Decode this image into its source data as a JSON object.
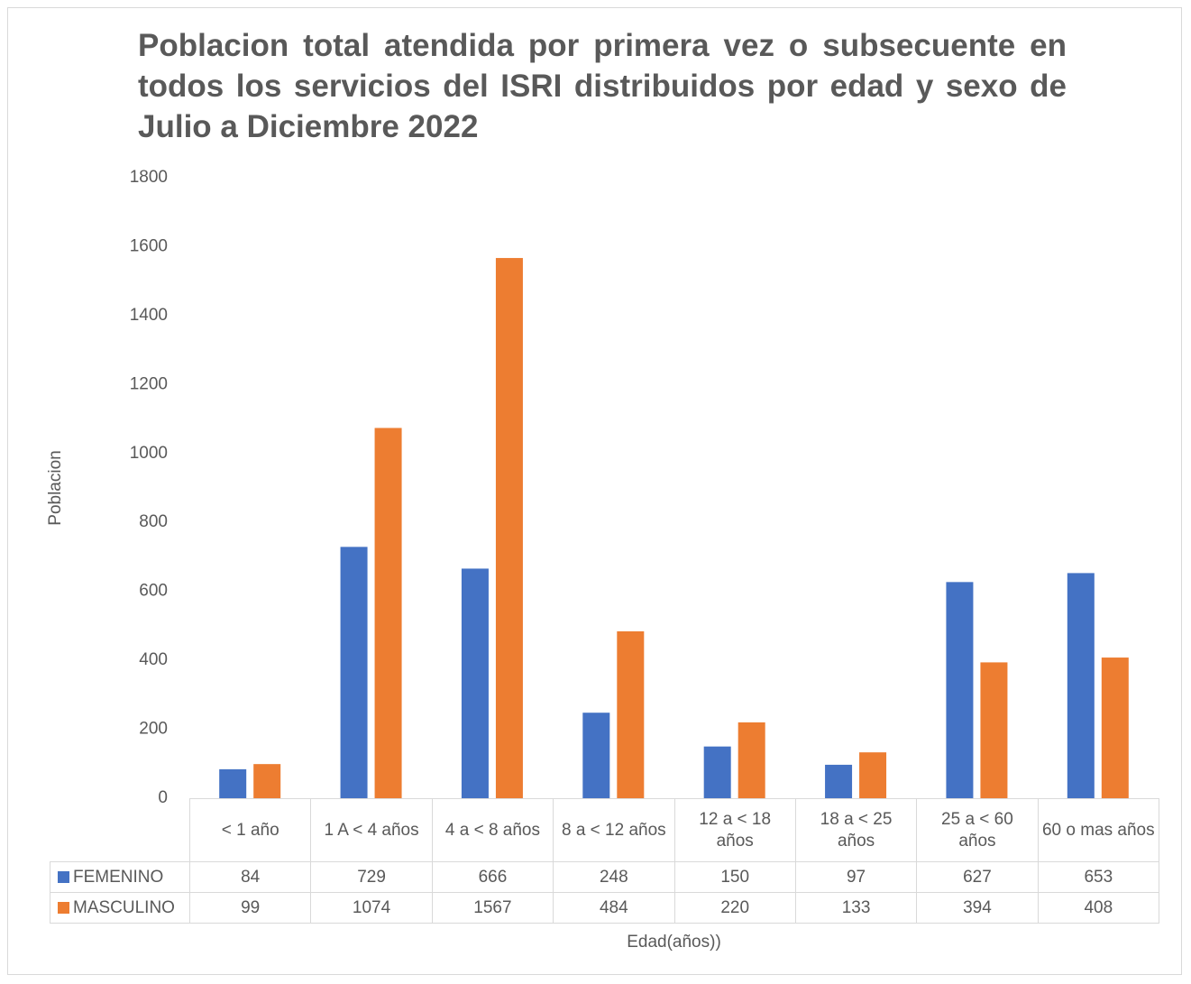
{
  "chart_data": {
    "type": "bar",
    "title": "Poblacion total atendida por primera vez o subsecuente en todos los servicios del ISRI distribuidos por edad y sexo de Julio a Diciembre 2022",
    "y_label": "Poblacion",
    "x_label": "Edad(años))",
    "categories": [
      "< 1 año",
      "1 A < 4 años",
      "4 a < 8 años",
      "8 a < 12 años",
      "12 a < 18 años",
      "18 a < 25 años",
      "25 a < 60 años",
      "60 o mas años"
    ],
    "series": [
      {
        "name": "FEMENINO",
        "color": "#4472c4",
        "values": [
          84,
          729,
          666,
          248,
          150,
          97,
          627,
          653
        ]
      },
      {
        "name": "MASCULINO",
        "color": "#ed7d31",
        "values": [
          99,
          1074,
          1567,
          484,
          220,
          133,
          394,
          408
        ]
      }
    ],
    "ylim": [
      0,
      1800
    ],
    "yticks": [
      0,
      200,
      400,
      600,
      800,
      1000,
      1200,
      1400,
      1600,
      1800
    ]
  }
}
